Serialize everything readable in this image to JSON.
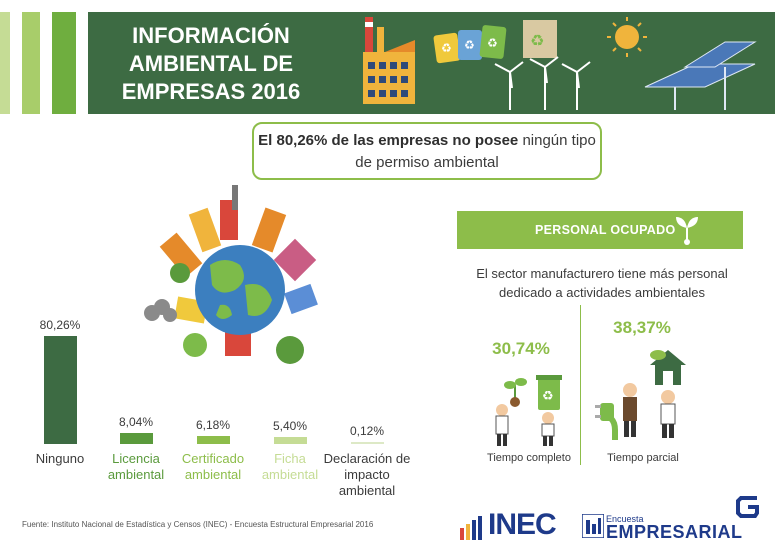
{
  "header": {
    "title": "INFORMACIÓN\nAMBIENTAL DE\nEMPRESAS 2016",
    "colors": {
      "dark_green": "#3d6b43",
      "light_green": "#8dbd4a",
      "mid_green": "#5a9a3c"
    }
  },
  "callout": {
    "bold_text": "El 80,26% de las empresas no posee",
    "rest_text": " ningún tipo de permiso ambiental"
  },
  "chart_data": {
    "type": "bar",
    "categories": [
      "Ninguno",
      "Licencia ambiental",
      "Certificado ambiental",
      "Ficha ambiental",
      "Declaración de impacto ambiental"
    ],
    "values": [
      80.26,
      8.04,
      6.18,
      5.4,
      0.12
    ],
    "value_labels": [
      "80,26%",
      "8,04%",
      "6,18%",
      "5,40%",
      "0,12%"
    ],
    "colors": [
      "#3d6b43",
      "#5a9a3c",
      "#8dbd4a",
      "#c5dc95",
      "#dde9c6"
    ],
    "label_colors": [
      "#3b3b3b",
      "#5a9a3c",
      "#8dbd4a",
      "#c5dc95",
      "#3b3b3b"
    ],
    "ylim": [
      0,
      100
    ]
  },
  "personal": {
    "banner": "PERSONAL OCUPADO",
    "text": "El sector manufacturero tiene más personal dedicado a actividades ambientales",
    "full_pct": "30,74%",
    "full_label": "Tiempo completo",
    "part_pct": "38,37%",
    "part_label": "Tiempo parcial"
  },
  "footer": {
    "source": "Fuente:  Instituto Nacional de Estadística y Censos (INEC) - Encuesta Estructural Empresarial 2016",
    "inec": "INEC",
    "encuesta_small": "Encuesta",
    "encuesta_big": "EMPRESARIAL"
  }
}
